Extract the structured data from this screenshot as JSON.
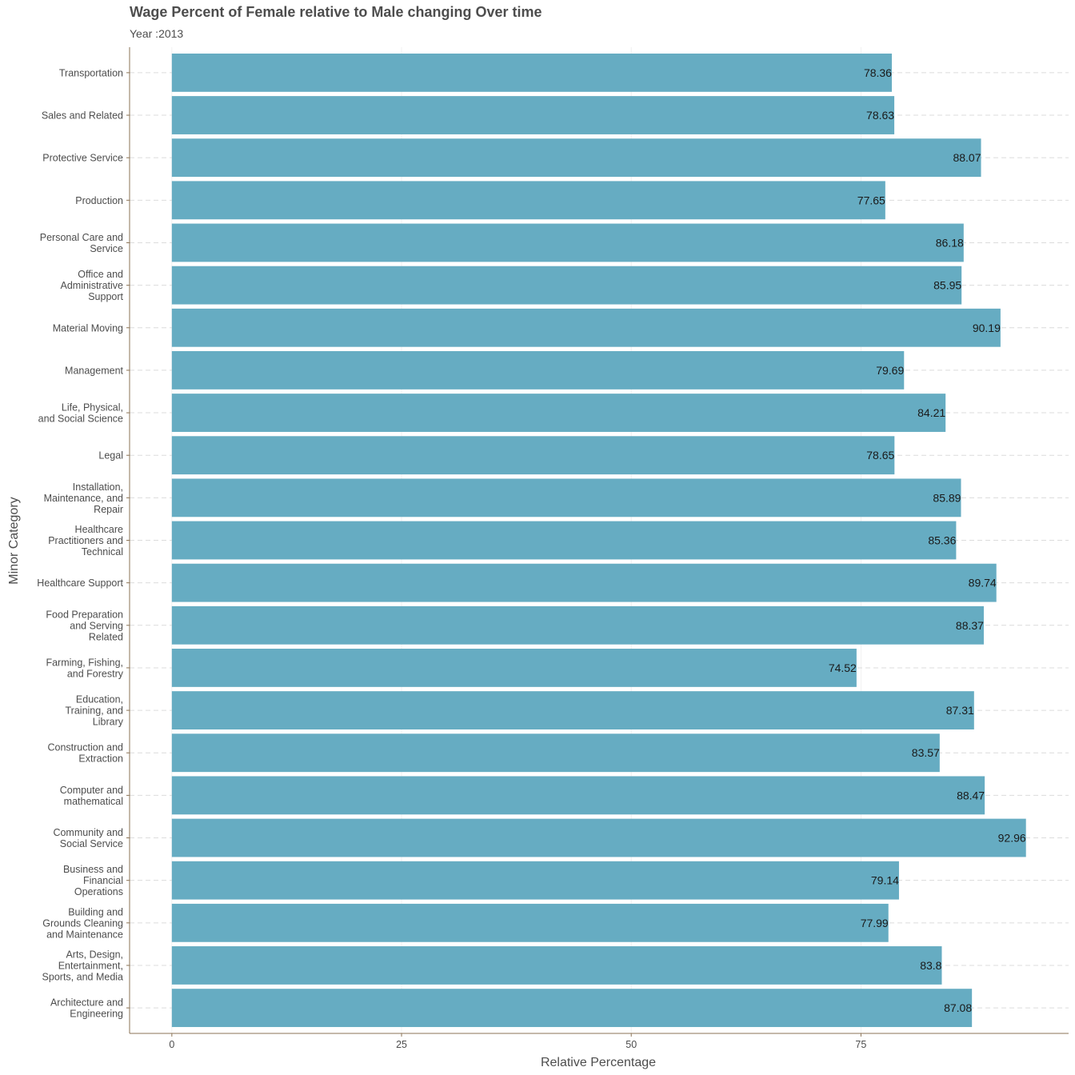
{
  "chart_data": {
    "type": "bar",
    "orientation": "horizontal",
    "title": "Wage Percent of Female relative to Male changing Over time",
    "subtitle": "Year :2013",
    "xlabel": "Relative Percentage",
    "ylabel": "Minor Category",
    "xlim": [
      -4.6,
      97.6
    ],
    "xticks": [
      0,
      25,
      50,
      75
    ],
    "grid": "dashed horizontal",
    "bar_color": "#66acc2",
    "categories": [
      "Transportation",
      "Sales and Related",
      "Protective Service",
      "Production",
      "Personal Care and\nService",
      "Office and\nAdministrative\nSupport",
      "Material Moving",
      "Management",
      "Life, Physical,\nand Social Science",
      "Legal",
      "Installation,\nMaintenance, and\nRepair",
      "Healthcare\nPractitioners and\nTechnical",
      "Healthcare Support",
      "Food Preparation\nand Serving\nRelated",
      "Farming, Fishing,\nand Forestry",
      "Education,\nTraining, and\nLibrary",
      "Construction and\nExtraction",
      "Computer and\nmathematical",
      "Community and\nSocial Service",
      "Business and\nFinancial\nOperations",
      "Building and\nGrounds Cleaning\nand Maintenance",
      "Arts, Design,\nEntertainment,\nSports, and Media",
      "Architecture and\nEngineering"
    ],
    "values": [
      78.36,
      78.63,
      88.07,
      77.65,
      86.18,
      85.95,
      90.19,
      79.69,
      84.21,
      78.65,
      85.89,
      85.36,
      89.74,
      88.37,
      74.52,
      87.31,
      83.57,
      88.47,
      92.96,
      79.14,
      77.99,
      83.8,
      87.08
    ],
    "data_labels": [
      "78.36",
      "78.63",
      "88.07",
      "77.65",
      "86.18",
      "85.95",
      "90.19",
      "79.69",
      "84.21",
      "78.65",
      "85.89",
      "85.36",
      "89.74",
      "88.37",
      "74.52",
      "87.31",
      "83.57",
      "88.47",
      "92.96",
      "79.14",
      "77.99",
      "83.8",
      "87.08"
    ]
  }
}
